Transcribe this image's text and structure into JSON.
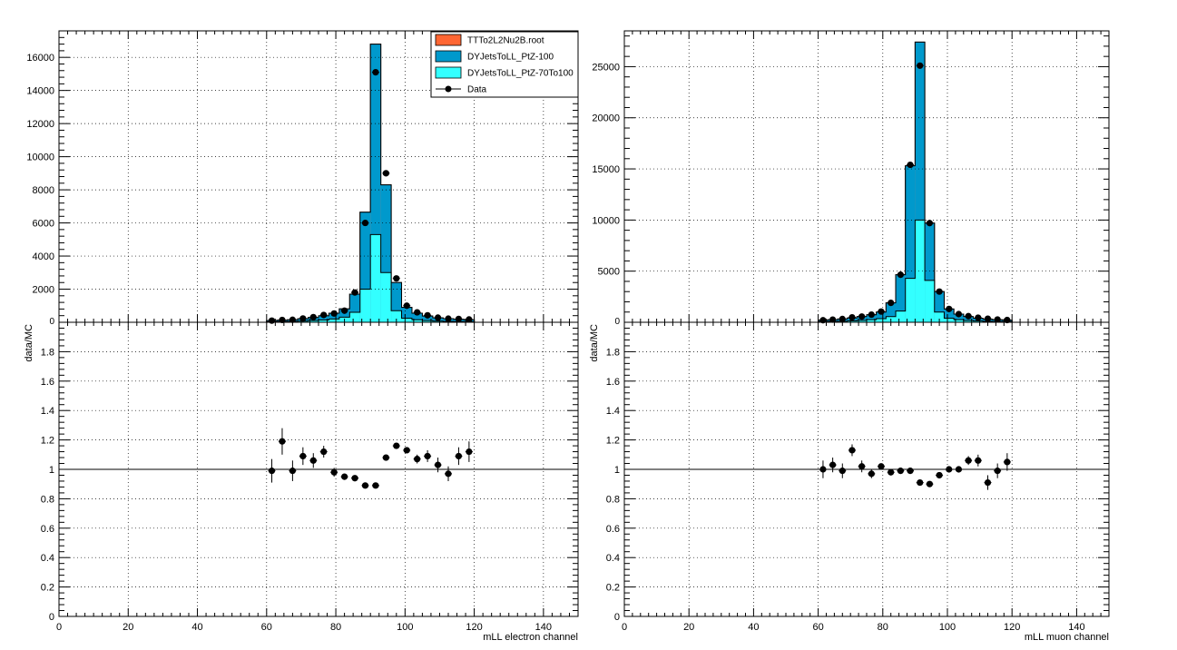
{
  "colors": {
    "ttbar": "#ff6633",
    "dy100": "#0099cc",
    "dy70": "#33ffff",
    "data": "#000000",
    "grid": "#000000"
  },
  "legend": {
    "entries": [
      {
        "label": "TTTo2L2Nu2B.root",
        "color": "#ff6633",
        "kind": "fill"
      },
      {
        "label": "DYJetsToLL_PtZ-100",
        "color": "#0099cc",
        "kind": "fill"
      },
      {
        "label": "DYJetsToLL_PtZ-70To100",
        "color": "#33ffff",
        "kind": "fill"
      },
      {
        "label": "Data",
        "color": "#000000",
        "kind": "marker"
      }
    ]
  },
  "chart_data": [
    {
      "type": "bar",
      "panel": "electron-main",
      "stacked": true,
      "xlim": [
        0,
        150
      ],
      "ylim": [
        0,
        17600
      ],
      "x_ticks": [
        0,
        20,
        40,
        60,
        80,
        100,
        120,
        140
      ],
      "y_ticks": [
        2000,
        4000,
        6000,
        8000,
        10000,
        12000,
        14000,
        16000
      ],
      "zero_label": "0",
      "grid": true,
      "legend_position": "top-right",
      "bin_edges": [
        60,
        63,
        66,
        69,
        72,
        75,
        78,
        81,
        84,
        87,
        90,
        93,
        96,
        99,
        102,
        105,
        108,
        111,
        114,
        117,
        120
      ],
      "series": [
        {
          "name": "DYJetsToLL_PtZ-70To100",
          "values": [
            30,
            40,
            50,
            70,
            100,
            140,
            200,
            310,
            600,
            2000,
            5300,
            3000,
            700,
            250,
            150,
            100,
            70,
            50,
            40,
            30
          ]
        },
        {
          "name": "DYJetsToLL_PtZ-100",
          "values": [
            70,
            80,
            100,
            140,
            190,
            250,
            350,
            500,
            1100,
            4650,
            11500,
            5300,
            1700,
            650,
            400,
            280,
            200,
            170,
            140,
            120
          ]
        },
        {
          "name": "TTTo2L2Nu2B.root",
          "values": [
            0,
            0,
            0,
            0,
            0,
            0,
            0,
            0,
            0,
            0,
            0,
            0,
            0,
            0,
            0,
            0,
            0,
            0,
            0,
            0
          ]
        }
      ],
      "data_points": {
        "x": [
          61.5,
          64.5,
          67.5,
          70.5,
          73.5,
          76.5,
          79.5,
          82.5,
          85.5,
          88.5,
          91.5,
          94.5,
          97.5,
          100.5,
          103.5,
          106.5,
          109.5,
          112.5,
          115.5,
          118.5
        ],
        "y": [
          100,
          140,
          150,
          230,
          310,
          440,
          530,
          700,
          1800,
          6000,
          15100,
          9000,
          2650,
          1000,
          600,
          420,
          280,
          220,
          200,
          170
        ]
      }
    },
    {
      "type": "scatter",
      "panel": "electron-ratio",
      "xlim": [
        0,
        150
      ],
      "ylim": [
        0,
        2
      ],
      "x_ticks": [
        0,
        20,
        40,
        60,
        80,
        100,
        120,
        140
      ],
      "y_ticks": [
        0,
        0.2,
        0.4,
        0.6,
        0.8,
        1,
        1.2,
        1.4,
        1.6,
        1.8
      ],
      "ylabel": "data/MC",
      "xlabel": "mLL electron channel",
      "grid": true,
      "x": [
        61.5,
        64.5,
        67.5,
        70.5,
        73.5,
        76.5,
        79.5,
        82.5,
        85.5,
        88.5,
        91.5,
        94.5,
        97.5,
        100.5,
        103.5,
        106.5,
        109.5,
        112.5,
        115.5,
        118.5
      ],
      "y": [
        0.99,
        1.19,
        0.99,
        1.09,
        1.06,
        1.12,
        0.98,
        0.95,
        0.94,
        0.89,
        0.89,
        1.08,
        1.16,
        1.13,
        1.07,
        1.09,
        1.03,
        0.97,
        1.09,
        1.12
      ],
      "yerr": [
        0.08,
        0.09,
        0.07,
        0.06,
        0.05,
        0.04,
        0.03,
        0.02,
        0.01,
        0.01,
        0.01,
        0.01,
        0.01,
        0.02,
        0.03,
        0.04,
        0.05,
        0.05,
        0.06,
        0.07
      ]
    },
    {
      "type": "bar",
      "panel": "muon-main",
      "stacked": true,
      "xlim": [
        0,
        150
      ],
      "ylim": [
        0,
        28500
      ],
      "x_ticks": [
        0,
        20,
        40,
        60,
        80,
        100,
        120,
        140
      ],
      "y_ticks": [
        5000,
        10000,
        15000,
        20000,
        25000
      ],
      "zero_label": "0",
      "grid": true,
      "bin_edges": [
        60,
        63,
        66,
        69,
        72,
        75,
        78,
        81,
        84,
        87,
        90,
        93,
        96,
        99,
        102,
        105,
        108,
        111,
        114,
        117,
        120
      ],
      "series": [
        {
          "name": "DYJetsToLL_PtZ-70To100",
          "values": [
            60,
            80,
            100,
            130,
            180,
            250,
            350,
            550,
            1100,
            4300,
            10000,
            4100,
            1000,
            400,
            250,
            170,
            120,
            90,
            70,
            60
          ]
        },
        {
          "name": "DYJetsToLL_PtZ-100",
          "values": [
            140,
            170,
            220,
            290,
            370,
            480,
            650,
            1350,
            3550,
            11000,
            17400,
            5600,
            2000,
            900,
            550,
            380,
            280,
            210,
            170,
            140
          ]
        },
        {
          "name": "TTTo2L2Nu2B.root",
          "values": [
            0,
            0,
            0,
            0,
            0,
            0,
            0,
            0,
            0,
            0,
            0,
            0,
            0,
            0,
            0,
            0,
            0,
            0,
            0,
            0
          ]
        }
      ],
      "data_points": {
        "x": [
          61.5,
          64.5,
          67.5,
          70.5,
          73.5,
          76.5,
          79.5,
          82.5,
          85.5,
          88.5,
          91.5,
          94.5,
          97.5,
          100.5,
          103.5,
          106.5,
          109.5,
          112.5,
          115.5,
          118.5
        ],
        "y": [
          200,
          260,
          320,
          480,
          560,
          750,
          1050,
          1900,
          4650,
          15400,
          25100,
          9700,
          3000,
          1300,
          800,
          600,
          450,
          350,
          270,
          220
        ]
      }
    },
    {
      "type": "scatter",
      "panel": "muon-ratio",
      "xlim": [
        0,
        150
      ],
      "ylim": [
        0,
        2
      ],
      "x_ticks": [
        0,
        20,
        40,
        60,
        80,
        100,
        120,
        140
      ],
      "y_ticks": [
        0,
        0.2,
        0.4,
        0.6,
        0.8,
        1,
        1.2,
        1.4,
        1.6,
        1.8
      ],
      "ylabel": "data/MC",
      "xlabel": "mLL muon channel",
      "grid": true,
      "x": [
        61.5,
        64.5,
        67.5,
        70.5,
        73.5,
        76.5,
        79.5,
        82.5,
        85.5,
        88.5,
        91.5,
        94.5,
        97.5,
        100.5,
        103.5,
        106.5,
        109.5,
        112.5,
        115.5,
        118.5
      ],
      "y": [
        1.0,
        1.03,
        0.99,
        1.13,
        1.02,
        0.97,
        1.02,
        0.98,
        0.99,
        0.99,
        0.91,
        0.9,
        0.96,
        1.0,
        1.0,
        1.06,
        1.06,
        0.91,
        0.99,
        1.05
      ],
      "yerr": [
        0.06,
        0.05,
        0.05,
        0.04,
        0.04,
        0.03,
        0.02,
        0.01,
        0.01,
        0.01,
        0.01,
        0.01,
        0.01,
        0.02,
        0.02,
        0.03,
        0.04,
        0.05,
        0.05,
        0.06
      ]
    }
  ]
}
